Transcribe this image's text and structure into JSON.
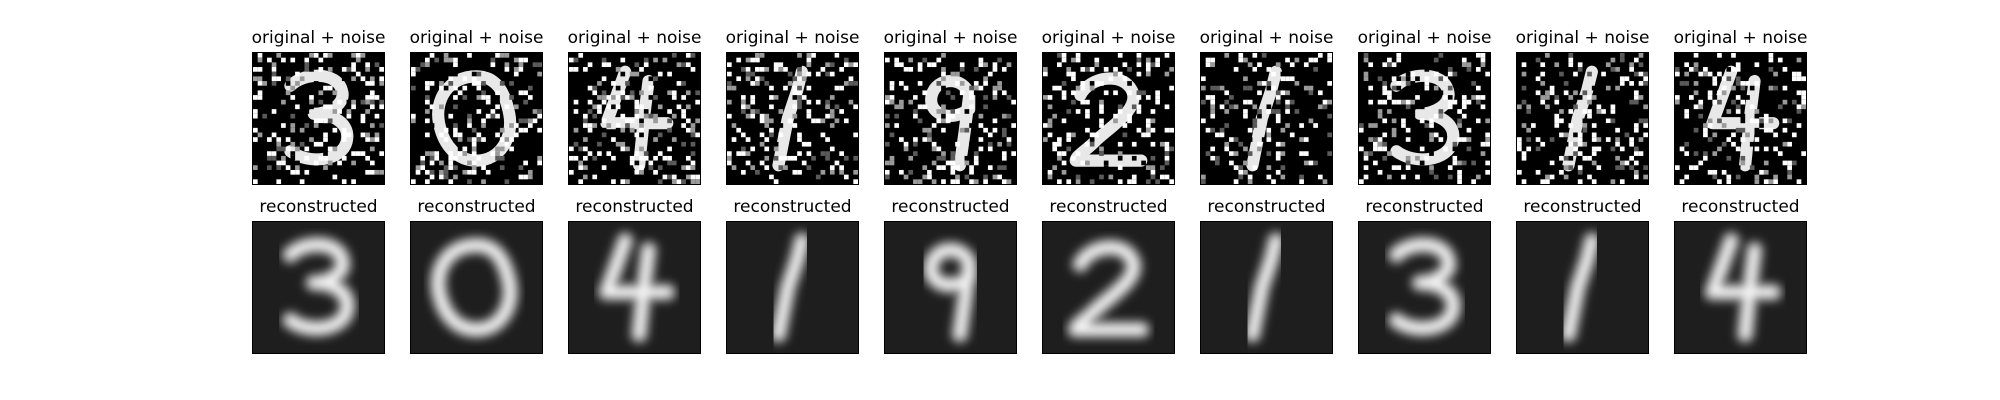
{
  "figure": {
    "rows": [
      {
        "name": "noisy",
        "title": "original + noise",
        "digits": [
          "3",
          "0",
          "4",
          "1",
          "9",
          "2",
          "1",
          "3",
          "1",
          "4"
        ],
        "background": "#000000",
        "noise_fraction": 0.22
      },
      {
        "name": "reconstructed",
        "title": "reconstructed",
        "digits": [
          "3",
          "0",
          "4",
          "1",
          "9",
          "2",
          "1",
          "3",
          "1",
          "4"
        ],
        "background": "#1e1e1e",
        "noise_fraction": 0.0
      }
    ]
  }
}
